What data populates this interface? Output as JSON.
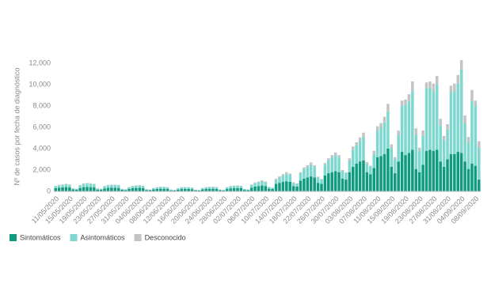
{
  "chart_data": {
    "type": "bar",
    "stacked": true,
    "y_label": "Nº de casos por fecha de diagnóstico",
    "categories": [
      "11/05/2020",
      null,
      null,
      null,
      "15/05/2020",
      null,
      null,
      null,
      "19/05/2020",
      null,
      null,
      null,
      "23/05/2020",
      null,
      null,
      null,
      "27/05/2020",
      null,
      null,
      null,
      "31/05/2020",
      null,
      null,
      null,
      "04/06/2020",
      null,
      null,
      null,
      "08/06/2020",
      null,
      null,
      null,
      "12/06/2020",
      null,
      null,
      null,
      "16/06/2020",
      null,
      null,
      null,
      "20/06/2020",
      null,
      null,
      null,
      "24/06/2020",
      null,
      null,
      null,
      "28/06/2020",
      null,
      null,
      null,
      "02/07/2020",
      null,
      null,
      null,
      "06/07/2020",
      null,
      null,
      null,
      "10/07/2020",
      null,
      null,
      null,
      "14/07/2020",
      null,
      null,
      null,
      "18/07/2020",
      null,
      null,
      null,
      "22/07/2020",
      null,
      null,
      null,
      "26/07/2020",
      null,
      null,
      null,
      "30/07/2020",
      null,
      null,
      null,
      "03/08/2020",
      null,
      null,
      null,
      "07/08/2020",
      null,
      null,
      null,
      "11/08/2020",
      null,
      null,
      null,
      "15/08/2020",
      null,
      null,
      null,
      "19/08/2020",
      null,
      null,
      null,
      "23/08/2020",
      null,
      null,
      null,
      "27/08/2020",
      null,
      null,
      null,
      "31/08/2020",
      null,
      null,
      null,
      "04/09/2020",
      null,
      null,
      null,
      "08/09/2020",
      null
    ],
    "series": [
      {
        "name": "Sintomáticos",
        "color": "#0f9b7e",
        "values": [
          300,
          350,
          380,
          400,
          380,
          180,
          150,
          320,
          400,
          420,
          400,
          380,
          170,
          150,
          280,
          330,
          350,
          340,
          320,
          150,
          120,
          230,
          300,
          320,
          330,
          310,
          130,
          110,
          180,
          230,
          250,
          240,
          230,
          100,
          90,
          170,
          220,
          230,
          230,
          210,
          100,
          80,
          180,
          230,
          240,
          250,
          230,
          110,
          90,
          220,
          280,
          300,
          310,
          300,
          140,
          110,
          350,
          450,
          500,
          550,
          500,
          250,
          220,
          700,
          800,
          900,
          950,
          900,
          500,
          450,
          1000,
          1200,
          1300,
          1400,
          1300,
          800,
          700,
          1500,
          1700,
          1800,
          1900,
          1800,
          1200,
          1100,
          1800,
          2300,
          2600,
          2800,
          2900,
          1800,
          1600,
          2200,
          3200,
          3300,
          3500,
          4000,
          2300,
          1700,
          2800,
          3700,
          3400,
          3600,
          3900,
          2100,
          1800,
          2500,
          3800,
          3900,
          3800,
          3900,
          2800,
          2300,
          3000,
          3500,
          3500,
          3700,
          3600,
          2800,
          2100,
          2600,
          2400,
          1100
        ]
      },
      {
        "name": "Asintomáticos",
        "color": "#7fd8cf",
        "values": [
          180,
          230,
          240,
          270,
          240,
          100,
          90,
          250,
          300,
          320,
          320,
          300,
          100,
          90,
          200,
          250,
          260,
          260,
          250,
          80,
          70,
          160,
          200,
          220,
          230,
          200,
          70,
          60,
          120,
          160,
          170,
          170,
          150,
          60,
          50,
          110,
          150,
          160,
          150,
          140,
          50,
          50,
          120,
          160,
          170,
          170,
          150,
          60,
          50,
          150,
          200,
          210,
          220,
          200,
          80,
          70,
          250,
          320,
          350,
          400,
          350,
          150,
          130,
          400,
          500,
          600,
          700,
          650,
          300,
          250,
          700,
          900,
          1000,
          1100,
          1000,
          500,
          400,
          1000,
          1200,
          1400,
          1500,
          1400,
          700,
          600,
          1100,
          1600,
          1700,
          1900,
          2200,
          800,
          700,
          1300,
          2500,
          2700,
          3000,
          3500,
          1800,
          1300,
          2500,
          4300,
          4700,
          4900,
          5500,
          3200,
          2000,
          2700,
          5800,
          5800,
          5600,
          6100,
          3400,
          2500,
          2800,
          5800,
          5900,
          6400,
          7800,
          3600,
          2500,
          5900,
          5600,
          3000
        ]
      },
      {
        "name": "Desconocido",
        "color": "#c4c4c4",
        "values": [
          30,
          30,
          30,
          40,
          30,
          20,
          10,
          30,
          40,
          40,
          40,
          30,
          20,
          10,
          30,
          30,
          30,
          30,
          30,
          10,
          10,
          20,
          20,
          30,
          30,
          20,
          10,
          10,
          20,
          20,
          20,
          20,
          20,
          10,
          10,
          20,
          20,
          20,
          20,
          20,
          10,
          10,
          20,
          20,
          20,
          20,
          20,
          10,
          10,
          20,
          20,
          30,
          30,
          20,
          10,
          10,
          50,
          60,
          70,
          80,
          70,
          30,
          20,
          80,
          100,
          120,
          150,
          120,
          60,
          50,
          100,
          150,
          150,
          200,
          150,
          80,
          60,
          150,
          200,
          200,
          250,
          200,
          100,
          80,
          200,
          300,
          300,
          350,
          400,
          150,
          100,
          300,
          400,
          400,
          500,
          700,
          300,
          200,
          400,
          500,
          500,
          600,
          900,
          600,
          300,
          500,
          600,
          600,
          700,
          800,
          600,
          400,
          500,
          600,
          700,
          800,
          900,
          700,
          500,
          1000,
          500,
          600
        ]
      }
    ],
    "ylim": [
      0,
      12500
    ],
    "yticks": [
      0,
      {
        "value": 2000,
        "label": "2,000"
      },
      {
        "value": 4000,
        "label": "4,000"
      },
      {
        "value": 6000,
        "label": "6,000"
      },
      {
        "value": 8000,
        "label": "8,000"
      },
      {
        "value": 10000,
        "label": "10,000"
      },
      {
        "value": 12000,
        "label": "12,000"
      }
    ],
    "grid": false
  }
}
